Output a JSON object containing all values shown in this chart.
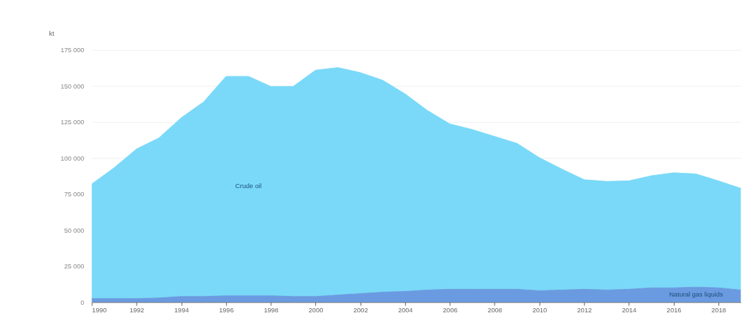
{
  "chart_data": {
    "type": "area",
    "stacked": true,
    "ylabel": "kt",
    "x": [
      1990,
      1991,
      1992,
      1993,
      1994,
      1995,
      1996,
      1997,
      1998,
      1999,
      2000,
      2001,
      2002,
      2003,
      2004,
      2005,
      2006,
      2007,
      2008,
      2009,
      2010,
      2011,
      2012,
      2013,
      2014,
      2015,
      2016,
      2017,
      2018,
      2019
    ],
    "series": [
      {
        "name": "Natural gas liquids",
        "color": "#6a9ae0",
        "values": [
          2500,
          2500,
          2500,
          3000,
          4000,
          4000,
          4500,
          4500,
          4500,
          4000,
          4000,
          5000,
          6000,
          7000,
          7500,
          8500,
          9000,
          9000,
          9000,
          9000,
          8000,
          8500,
          9000,
          8500,
          9000,
          10000,
          10000,
          10500,
          10000,
          8500
        ]
      },
      {
        "name": "Crude oil",
        "color": "#7ad9f8",
        "values": [
          79500,
          90800,
          103800,
          111000,
          124000,
          135000,
          152200,
          152200,
          145200,
          145700,
          157000,
          157800,
          153300,
          147000,
          137000,
          124500,
          114700,
          110800,
          106000,
          101200,
          92300,
          83900,
          76000,
          75300,
          75200,
          77700,
          79800,
          78500,
          74200,
          70500
        ]
      }
    ],
    "xlim": [
      1990,
      2019
    ],
    "xticks": [
      1990,
      1992,
      1994,
      1996,
      1998,
      2000,
      2002,
      2004,
      2006,
      2008,
      2010,
      2012,
      2014,
      2016,
      2018
    ],
    "ylim": [
      0,
      175000
    ],
    "yticks": [
      {
        "value": 0,
        "label": "0"
      },
      {
        "value": 25000,
        "label": "25 000"
      },
      {
        "value": 50000,
        "label": "50 000"
      },
      {
        "value": 75000,
        "label": "75 000"
      },
      {
        "value": 100000,
        "label": "100 000"
      },
      {
        "value": 125000,
        "label": "125 000"
      },
      {
        "value": 150000,
        "label": "150 000"
      },
      {
        "value": 175000,
        "label": "175 000"
      }
    ],
    "grid": "y"
  }
}
